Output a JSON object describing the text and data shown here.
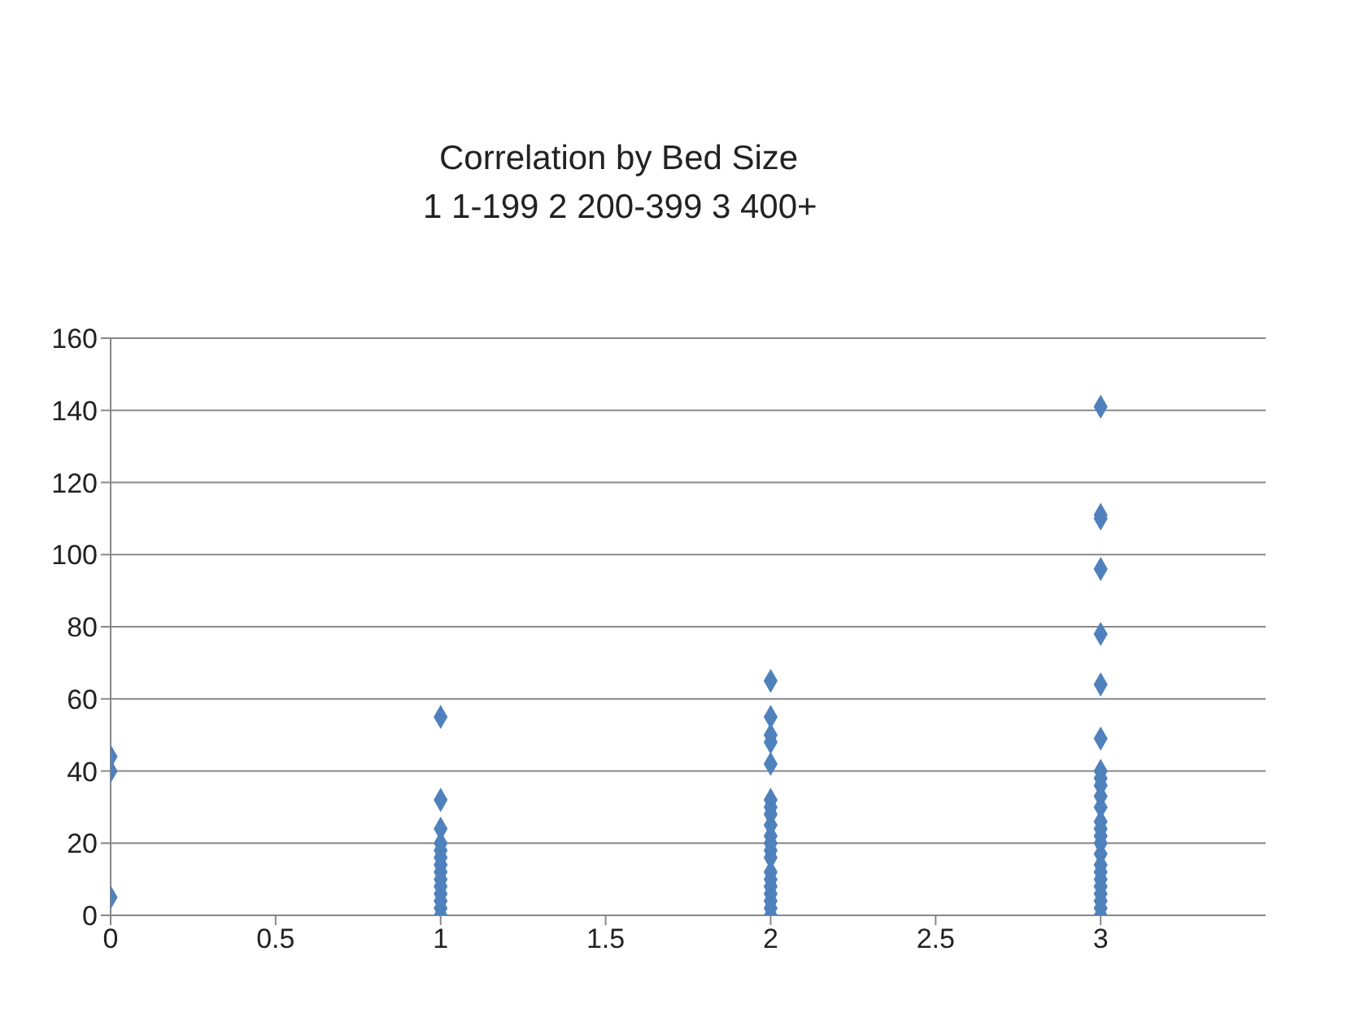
{
  "chart_data": {
    "type": "scatter",
    "title": "Correlation by Bed Size",
    "subtitle": "1 1-199   2 200-399  3 400+",
    "x": [
      0,
      0,
      0,
      1,
      1,
      1,
      1,
      1,
      1,
      1,
      1,
      1,
      1,
      1,
      1,
      1,
      1,
      2,
      2,
      2,
      2,
      2,
      2,
      2,
      2,
      2,
      2,
      2,
      2,
      2,
      2,
      2,
      2,
      2,
      2,
      2,
      2,
      3,
      3,
      3,
      3,
      3,
      3,
      3,
      3,
      3,
      3,
      3,
      3,
      3,
      3,
      3,
      3,
      3,
      3,
      3,
      3,
      3,
      3,
      3,
      3,
      3
    ],
    "values": [
      44,
      40,
      5,
      55,
      32,
      24,
      20,
      18,
      16,
      14,
      12,
      10,
      8,
      6,
      4,
      2,
      0,
      65,
      55,
      50,
      48,
      42,
      32,
      30,
      28,
      25,
      22,
      20,
      18,
      16,
      12,
      10,
      8,
      6,
      4,
      2,
      0,
      141,
      111,
      110,
      96,
      78,
      64,
      49,
      40,
      38,
      36,
      33,
      30,
      26,
      24,
      22,
      20,
      17,
      14,
      12,
      10,
      8,
      6,
      4,
      2,
      0
    ],
    "color": "#4f81bd",
    "marker": "diamond",
    "grid": "y",
    "xlim": [
      0,
      3.5
    ],
    "xticks": [
      0,
      0.5,
      1,
      1.5,
      2,
      2.5,
      3
    ],
    "ylim": [
      0,
      160
    ],
    "yticks": [
      0,
      20,
      40,
      60,
      80,
      100,
      120,
      140,
      160
    ]
  }
}
